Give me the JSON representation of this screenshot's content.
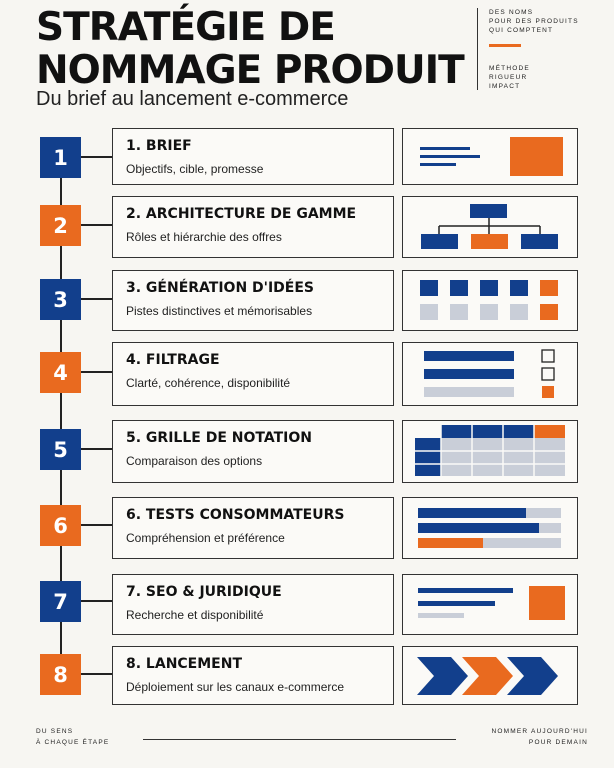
{
  "header": {
    "title_line1": "STRATÉGIE DE",
    "title_line2": "NOMMAGE PRODUIT",
    "subtitle": "Du brief au lancement e-commerce",
    "side_top": [
      "DES NOMS",
      "POUR DES PRODUITS",
      "QUI COMPTENT"
    ],
    "side_bottom": [
      "MÉTHODE",
      "RIGUEUR",
      "IMPACT"
    ]
  },
  "colors": {
    "blue": "#123f8c",
    "orange": "#e96a1f",
    "grey": "#c9ced8"
  },
  "steps": [
    {
      "number": "1",
      "title": "1. BRIEF",
      "desc": "Objectifs, cible, promesse",
      "color": "blue",
      "icon": "brief-illustration"
    },
    {
      "number": "2",
      "title": "2. ARCHITECTURE DE GAMME",
      "desc": "Rôles et hiérarchie des offres",
      "color": "orange",
      "icon": "hierarchy-illustration"
    },
    {
      "number": "3",
      "title": "3. GÉNÉRATION D'IDÉES",
      "desc": "Pistes distinctives et mémorisables",
      "color": "blue",
      "icon": "ideas-grid-illustration"
    },
    {
      "number": "4",
      "title": "4. FILTRAGE",
      "desc": "Clarté, cohérence, disponibilité",
      "color": "orange",
      "icon": "filter-checklist-illustration"
    },
    {
      "number": "5",
      "title": "5. GRILLE DE NOTATION",
      "desc": "Comparaison des options",
      "color": "blue",
      "icon": "scoring-table-illustration"
    },
    {
      "number": "6",
      "title": "6. TESTS CONSOMMATEURS",
      "desc": "Compréhension et préférence",
      "color": "orange",
      "icon": "progress-bars-illustration"
    },
    {
      "number": "7",
      "title": "7. SEO & JURIDIQUE",
      "desc": "Recherche et disponibilité",
      "color": "blue",
      "icon": "search-legal-illustration"
    },
    {
      "number": "8",
      "title": "8. LANCEMENT",
      "desc": "Déploiement sur les canaux e-commerce",
      "color": "orange",
      "icon": "launch-chevrons-illustration"
    }
  ],
  "footer": {
    "left": [
      "DU SENS",
      "À CHAQUE ÉTAPE"
    ],
    "right": [
      "NOMMER AUJOURD'HUI",
      "POUR DEMAIN"
    ]
  }
}
